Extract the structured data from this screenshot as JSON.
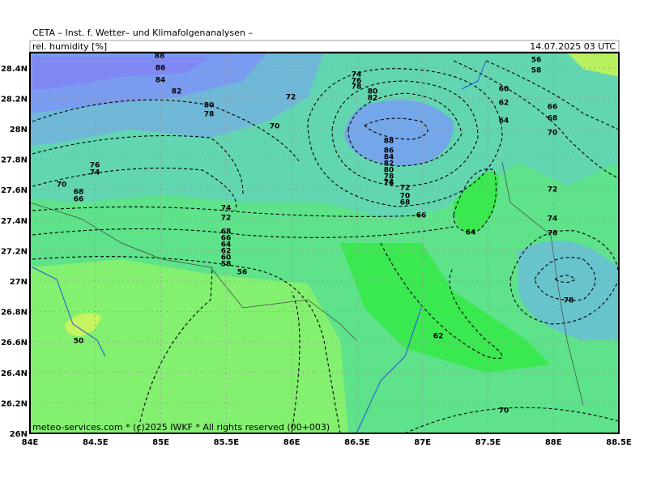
{
  "header": {
    "title": "CETA – Inst. f. Wetter– und Klimafolgenanalysen –",
    "variable": "rel. humidity [%]",
    "valid_time": "14.07.2025 03 UTC"
  },
  "footer": "meteo-services.com * (c)2025 IWKF * All rights reserved (00+003)",
  "map": {
    "xlim": [
      84,
      88.5
    ],
    "ylim": [
      26,
      28.5
    ],
    "xticks": [
      {
        "value": 84,
        "label": "84E"
      },
      {
        "value": 84.5,
        "label": "84.5E"
      },
      {
        "value": 85,
        "label": "85E"
      },
      {
        "value": 85.5,
        "label": "85.5E"
      },
      {
        "value": 86,
        "label": "86E"
      },
      {
        "value": 86.5,
        "label": "86.5E"
      },
      {
        "value": 87,
        "label": "87E"
      },
      {
        "value": 87.5,
        "label": "87.5E"
      },
      {
        "value": 88,
        "label": "88E"
      },
      {
        "value": 88.5,
        "label": "88.5E"
      }
    ],
    "yticks": [
      {
        "value": 26,
        "label": "26N"
      },
      {
        "value": 26.2,
        "label": "26.2N"
      },
      {
        "value": 26.4,
        "label": "26.4N"
      },
      {
        "value": 26.6,
        "label": "26.6N"
      },
      {
        "value": 26.8,
        "label": "26.8N"
      },
      {
        "value": 27,
        "label": "27N"
      },
      {
        "value": 27.2,
        "label": "27.2N"
      },
      {
        "value": 27.4,
        "label": "27.4N"
      },
      {
        "value": 27.6,
        "label": "27.6N"
      },
      {
        "value": 27.8,
        "label": "27.8N"
      },
      {
        "value": 28,
        "label": "28N"
      },
      {
        "value": 28.2,
        "label": "28.2N"
      },
      {
        "value": 28.4,
        "label": "28.4N"
      }
    ],
    "contour_labels": [
      "88",
      "86",
      "84",
      "82",
      "80",
      "78",
      "72",
      "70",
      "76",
      "74",
      "70",
      "68",
      "66",
      "74",
      "72",
      "68",
      "66",
      "64",
      "62",
      "60",
      "58",
      "56",
      "50",
      "74",
      "76",
      "78",
      "80",
      "82",
      "88",
      "86",
      "84",
      "82",
      "80",
      "78",
      "76",
      "74",
      "72",
      "70",
      "68",
      "66",
      "64",
      "62",
      "56",
      "58",
      "60",
      "62",
      "64",
      "66",
      "68",
      "70",
      "72",
      "74",
      "76",
      "78",
      "70"
    ]
  }
}
